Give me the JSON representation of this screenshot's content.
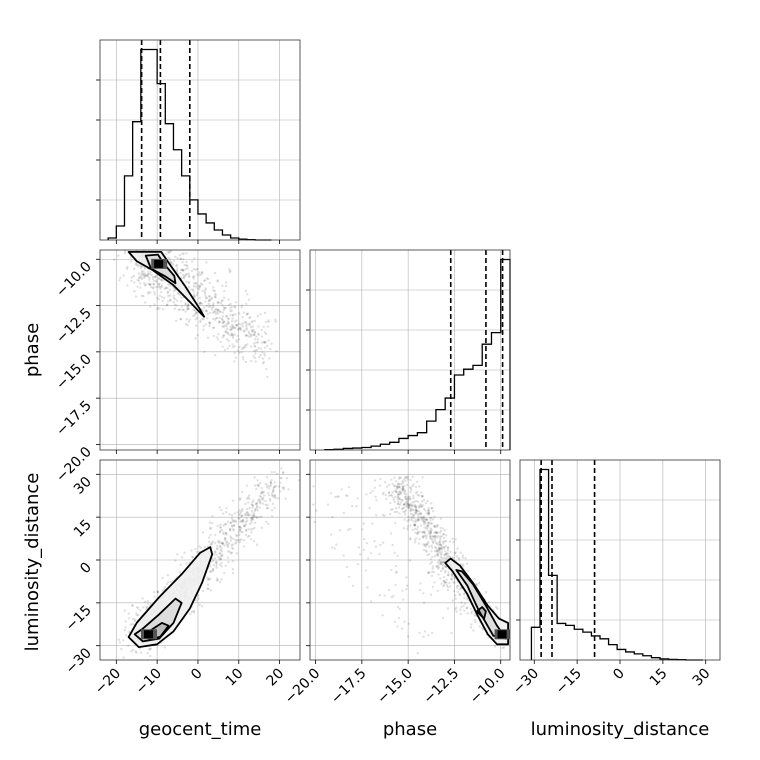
{
  "chart_data": {
    "type": "corner",
    "title": "",
    "parameters": [
      "geocent_time",
      "phase",
      "luminosity_distance"
    ],
    "ranges": {
      "geocent_time": [
        -24,
        25
      ],
      "phase": [
        -20.3,
        -9.5
      ],
      "luminosity_distance": [
        -35,
        35
      ]
    },
    "ticks": {
      "geocent_time": [
        "−20",
        "−10",
        "0",
        "10",
        "20"
      ],
      "phase": [
        "−20.0",
        "−17.5",
        "−15.0",
        "−12.5",
        "−10.0"
      ],
      "luminosity_distance": [
        "−30",
        "−15",
        "0",
        "15",
        "30"
      ]
    },
    "tick_values": {
      "geocent_time": [
        -20,
        -10,
        0,
        10,
        20
      ],
      "phase": [
        -20,
        -17.5,
        -15,
        -12.5,
        -10
      ],
      "luminosity_distance": [
        -30,
        -15,
        0,
        15,
        30
      ]
    },
    "grid": true,
    "histograms": {
      "geocent_time": {
        "edges": [
          -22,
          -20,
          -18,
          -16,
          -14,
          -12,
          -10,
          -8,
          -6,
          -4,
          -2,
          0,
          2,
          4,
          6,
          8,
          10,
          12,
          14,
          16,
          18
        ],
        "counts": [
          0.01,
          0.07,
          0.32,
          0.59,
          0.95,
          0.95,
          0.78,
          0.58,
          0.45,
          0.32,
          0.2,
          0.13,
          0.085,
          0.05,
          0.025,
          0.01,
          0.004,
          0.002,
          0,
          0
        ],
        "quantiles": [
          -13.8,
          -9.2,
          -2.0
        ]
      },
      "phase": {
        "edges": [
          -19.5,
          -19.0,
          -18.5,
          -18.0,
          -17.5,
          -17.0,
          -16.5,
          -16.0,
          -15.5,
          -15.0,
          -14.5,
          -14.0,
          -13.5,
          -13.0,
          -12.5,
          -12.0,
          -11.5,
          -11.0,
          -10.5,
          -10.0,
          -9.5
        ],
        "counts": [
          0.002,
          0.004,
          0.008,
          0.01,
          0.013,
          0.02,
          0.03,
          0.04,
          0.06,
          0.075,
          0.09,
          0.15,
          0.21,
          0.27,
          0.39,
          0.42,
          0.44,
          0.55,
          0.61,
          0.99
        ],
        "quantiles": [
          -12.7,
          -10.8,
          -9.9
        ]
      },
      "luminosity_distance": {
        "edges": [
          -31,
          -28,
          -25,
          -22,
          -19,
          -16,
          -13,
          -10,
          -7,
          -4,
          -1,
          2,
          5,
          8,
          11,
          14,
          17,
          20,
          23,
          26,
          29
        ],
        "counts": [
          0.17,
          0.99,
          0.44,
          0.19,
          0.18,
          0.16,
          0.145,
          0.125,
          0.11,
          0.08,
          0.055,
          0.042,
          0.032,
          0.022,
          0.012,
          0.006,
          0.003,
          0.0015,
          0,
          0
        ],
        "quantiles": [
          -27.6,
          -23.8,
          -8.9
        ]
      }
    },
    "panels": [
      {
        "x": "geocent_time",
        "y": "phase",
        "center": [
          -9.5,
          -10.25
        ],
        "contours": [
          [
            [
              -17,
              -9.6
            ],
            [
              -15,
              -10.1
            ],
            [
              -11,
              -10.6
            ],
            [
              -6,
              -11.4
            ],
            [
              -2,
              -12.3
            ],
            [
              1.5,
              -13.1
            ],
            [
              0.5,
              -12.7
            ],
            [
              -3,
              -11.5
            ],
            [
              -6.5,
              -10.4
            ],
            [
              -9,
              -9.6
            ]
          ],
          [
            [
              -12.8,
              -9.8
            ],
            [
              -11.5,
              -10.5
            ],
            [
              -8.2,
              -10.9
            ],
            [
              -5.5,
              -11.3
            ],
            [
              -5.8,
              -10.9
            ],
            [
              -8.5,
              -10.2
            ],
            [
              -9.8,
              -9.75
            ]
          ]
        ]
      },
      {
        "x": "geocent_time",
        "y": "luminosity_distance",
        "center": [
          -12,
          -26
        ],
        "contours": [
          [
            [
              -17,
              -27
            ],
            [
              -14.5,
              -30.5
            ],
            [
              -10,
              -29.5
            ],
            [
              -6,
              -25
            ],
            [
              -2,
              -17
            ],
            [
              1,
              -8
            ],
            [
              3.5,
              2
            ],
            [
              3,
              4.5
            ],
            [
              0.5,
              2.5
            ],
            [
              -4,
              -5
            ],
            [
              -9.5,
              -13
            ],
            [
              -15,
              -22
            ]
          ],
          [
            [
              -15.5,
              -26
            ],
            [
              -13.5,
              -28.5
            ],
            [
              -9.5,
              -27.5
            ],
            [
              -6,
              -22
            ],
            [
              -4,
              -15
            ],
            [
              -5.5,
              -13.5
            ],
            [
              -9.5,
              -19
            ],
            [
              -13.5,
              -24
            ]
          ],
          [
            [
              -13.5,
              -26.5
            ],
            [
              -11.5,
              -27.8
            ],
            [
              -9.2,
              -26.8
            ],
            [
              -7.2,
              -23
            ],
            [
              -8.8,
              -22
            ],
            [
              -11.8,
              -24.8
            ]
          ]
        ]
      },
      {
        "x": "phase",
        "y": "luminosity_distance",
        "center": [
          -9.9,
          -26
        ],
        "contours": [
          [
            [
              -13.0,
              -1
            ],
            [
              -12.6,
              -4
            ],
            [
              -11.8,
              -12
            ],
            [
              -11.2,
              -20
            ],
            [
              -10.7,
              -26
            ],
            [
              -10.2,
              -29.5
            ],
            [
              -9.6,
              -29.5
            ],
            [
              -9.6,
              -22
            ],
            [
              -10.1,
              -20.5
            ],
            [
              -10.7,
              -16
            ],
            [
              -11.5,
              -8
            ],
            [
              -12.2,
              -2
            ],
            [
              -12.7,
              0.5
            ]
          ],
          [
            [
              -12.4,
              -3.5
            ],
            [
              -11.8,
              -9
            ],
            [
              -11.2,
              -17.5
            ],
            [
              -10.4,
              -26.5
            ],
            [
              -9.7,
              -27.5
            ],
            [
              -10.2,
              -23
            ],
            [
              -10.8,
              -16
            ],
            [
              -11.5,
              -8.5
            ],
            [
              -12.1,
              -4
            ]
          ],
          [
            [
              -11.3,
              -18
            ],
            [
              -10.9,
              -20.5
            ],
            [
              -10.8,
              -18
            ],
            [
              -11.0,
              -16.5
            ]
          ]
        ]
      }
    ]
  }
}
